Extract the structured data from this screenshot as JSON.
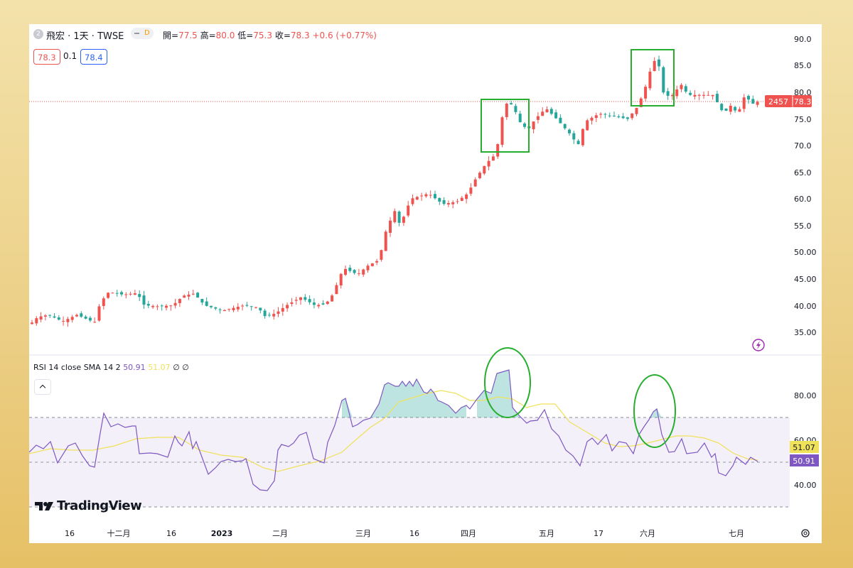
{
  "header": {
    "symbol_icon": "circle-logo-icon",
    "symbol": "飛宏 · 1天 · TWSE",
    "market_badge": "D",
    "ohlc_open_label": "開=",
    "open": "77.5",
    "ohlc_high_label": "高=",
    "high": "80.0",
    "ohlc_low_label": "低=",
    "low": "75.3",
    "ohlc_close_label": "收=",
    "close": "78.3",
    "change": "+0.6 (+0.77%)"
  },
  "quote": {
    "bid": "78.3",
    "spread": "0.1",
    "ask": "78.4"
  },
  "price_axis": [
    "90.0",
    "85.0",
    "80.0",
    "75.0",
    "70.0",
    "65.0",
    "60.0",
    "55.0",
    "50.00",
    "45.00",
    "40.00",
    "35.00"
  ],
  "price_tag": {
    "countdown": "2457",
    "last": "78.3"
  },
  "rsi": {
    "legend_label": "RSI",
    "legend_params": "14 close SMA 14 2",
    "rsi_value": "50.91",
    "sma_value": "51.07",
    "extra1": "∅",
    "extra2": "∅",
    "axis": [
      "80.00",
      "60.00",
      "40.00"
    ],
    "rsi_tag": "50.91",
    "sma_tag": "51.07"
  },
  "time_axis": [
    "16",
    "十二月",
    "16",
    "2023",
    "二月",
    "三月",
    "16",
    "四月",
    "五月",
    "17",
    "六月",
    "七月"
  ],
  "brand": "TradingView",
  "colors": {
    "up": "#ef5350",
    "down": "#26a69a",
    "rsi": "#7e57c2",
    "sma": "#f0e15a",
    "highlight": "#27ae2f"
  }
}
